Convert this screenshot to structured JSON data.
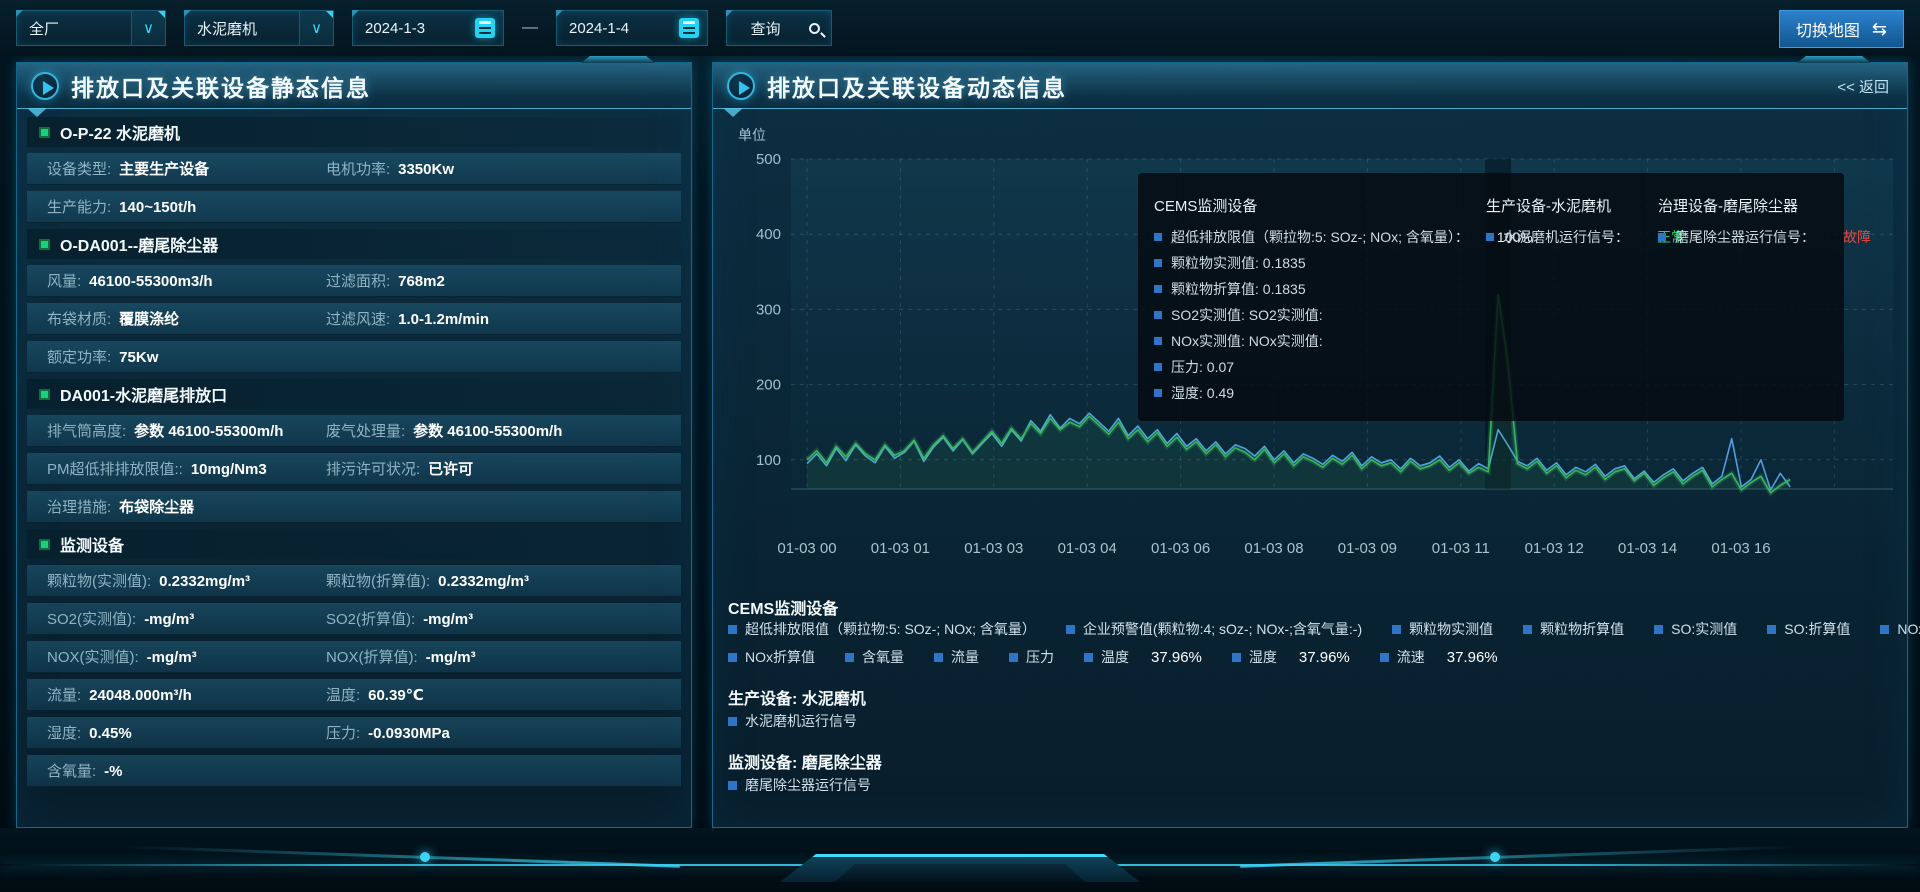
{
  "topbar": {
    "select_plant": {
      "value": "全厂"
    },
    "select_device": {
      "value": "水泥磨机"
    },
    "date_start": "2024-1-3",
    "date_separator": "—",
    "date_end": "2024-1-4",
    "query_label": "查询",
    "switch_map_label": "切换地图",
    "switch_icon": "⇆"
  },
  "left_panel": {
    "title": "排放口及关联设备静态信息",
    "rows": [
      {
        "type": "section",
        "label": "O-P-22 水泥磨机"
      },
      {
        "type": "data",
        "cols": [
          {
            "label": "设备类型:",
            "value": "主要生产设备"
          },
          {
            "label": "电机功率:",
            "value": "3350Kw"
          }
        ]
      },
      {
        "type": "data",
        "cols": [
          {
            "label": "生产能力:",
            "value": "140~150t/h"
          }
        ]
      },
      {
        "type": "section",
        "label": "O-DA001--磨尾除尘器"
      },
      {
        "type": "data",
        "cols": [
          {
            "label": "风量:",
            "value": "46100-55300m3/h"
          },
          {
            "label": "过滤面积:",
            "value": "768m2"
          }
        ]
      },
      {
        "type": "data",
        "cols": [
          {
            "label": "布袋材质:",
            "value": "覆膜涤纶"
          },
          {
            "label": "过滤风速:",
            "value": "1.0-1.2m/min"
          }
        ]
      },
      {
        "type": "data",
        "cols": [
          {
            "label": "额定功率:",
            "value": "75Kw"
          }
        ]
      },
      {
        "type": "section",
        "label": "DA001-水泥磨尾排放口"
      },
      {
        "type": "data",
        "cols": [
          {
            "label": "排气筒高度:",
            "value": "参数 46100-55300m/h"
          },
          {
            "label": "废气处理量:",
            "value": "参数 46100-55300m/h"
          }
        ]
      },
      {
        "type": "data",
        "cols": [
          {
            "label": "PM超低排排放限值::",
            "value": "10mg/Nm3"
          },
          {
            "label": "排污许可状况:",
            "value": "已许可"
          }
        ]
      },
      {
        "type": "data",
        "cols": [
          {
            "label": "治理措施:",
            "value": "布袋除尘器"
          }
        ]
      },
      {
        "type": "section",
        "label": "监测设备"
      },
      {
        "type": "data",
        "cols": [
          {
            "label": "颗粒物(实测值):",
            "value": "0.2332mg/m³"
          },
          {
            "label": "颗粒物(折算值):",
            "value": "0.2332mg/m³"
          }
        ]
      },
      {
        "type": "data",
        "cols": [
          {
            "label": "SO2(实测值):",
            "value": "-mg/m³"
          },
          {
            "label": "SO2(折算值):",
            "value": "-mg/m³"
          }
        ]
      },
      {
        "type": "data",
        "cols": [
          {
            "label": "NOX(实测值):",
            "value": "-mg/m³"
          },
          {
            "label": "NOX(折算值):",
            "value": "-mg/m³"
          }
        ]
      },
      {
        "type": "data",
        "cols": [
          {
            "label": "流量:",
            "value": "24048.000m³/h"
          },
          {
            "label": "温度:",
            "value": "60.39℃"
          }
        ]
      },
      {
        "type": "data",
        "cols": [
          {
            "label": "湿度:",
            "value": "0.45%"
          },
          {
            "label": "压力:",
            "value": "-0.0930MPa"
          }
        ]
      },
      {
        "type": "data",
        "cols": [
          {
            "label": "含氧量:",
            "value": "-%"
          }
        ]
      }
    ]
  },
  "right_panel": {
    "title": "排放口及关联设备动态信息",
    "back_label": "<< 返回",
    "unit_label": "单位",
    "tooltip": {
      "columns": [
        {
          "title": "CEMS监测设备",
          "items": [
            {
              "label": "超低排放限值（颗拉物:5: SOz-; NOx; 含氧量）：",
              "value": "100%",
              "value_color": "#e6eef4"
            },
            {
              "label": "颗粒物实测值: 0.1835"
            },
            {
              "label": "颗粒物折算值: 0.1835"
            },
            {
              "label": "SO2实测值: SO2实测值:"
            },
            {
              "label": "NOx实测值: NOx实测值:"
            },
            {
              "label": "压力: 0.07"
            },
            {
              "label": "湿度: 0.49"
            }
          ]
        },
        {
          "title": "生产设备-水泥磨机",
          "items": [
            {
              "label": "水泥磨机运行信号：",
              "value": "正常",
              "value_color": "#2ecc71"
            }
          ]
        },
        {
          "title": "治理设备-磨尾除尘器",
          "items": [
            {
              "label": "磨尾除尘器运行信号：",
              "value": "故障",
              "value_color": "#e8483b"
            }
          ]
        }
      ]
    },
    "legend": {
      "cems_title": "CEMS监测设备",
      "row1": [
        "超低排放限值（颗拉物:5: SOz-; NOx; 含氧量）",
        "企业预警值(颗粒物:4; sOz-; NOx-;含氧气量:-)",
        "颗粒物实测值",
        "颗粒物折算值",
        "SO:实测值",
        "SO:折算值",
        "NOx实测值"
      ],
      "row2": [
        {
          "label": "NOx折算值"
        },
        {
          "label": "含氧量"
        },
        {
          "label": "流量"
        },
        {
          "label": "压力"
        },
        {
          "label": "温度",
          "value": "37.96%"
        },
        {
          "label": "湿度",
          "value": "37.96%"
        },
        {
          "label": "流速",
          "value": "37.96%"
        }
      ],
      "prod_title": "生产设备: 水泥磨机",
      "prod_items": [
        "水泥磨机运行信号"
      ],
      "mon_title": "监测设备: 磨尾除尘器",
      "mon_items": [
        "磨尾除尘器运行信号"
      ]
    }
  },
  "chart_data": {
    "type": "line",
    "title": "",
    "ylabel": "单位",
    "ylim": [
      0,
      500
    ],
    "yticks": [
      100,
      200,
      300,
      400,
      500
    ],
    "grid": true,
    "legend_position": "bottom",
    "x_tick_labels": [
      "01-03 00",
      "01-03 01",
      "01-03 03",
      "01-03 04",
      "01-03 06",
      "01-03 08",
      "01-03 09",
      "01-03 11",
      "01-03 12",
      "01-03 14",
      "01-03 16"
    ],
    "hover_index": 71,
    "series": [
      {
        "name": "颗粒物实测值",
        "color": "#4f9fe0",
        "values": [
          95,
          108,
          92,
          115,
          99,
          120,
          105,
          96,
          118,
          102,
          110,
          125,
          98,
          117,
          130,
          112,
          127,
          108,
          122,
          135,
          118,
          140,
          125,
          152,
          138,
          160,
          142,
          155,
          148,
          162,
          150,
          138,
          155,
          132,
          145,
          128,
          140,
          122,
          135,
          118,
          128,
          112,
          124,
          108,
          120,
          115,
          105,
          118,
          100,
          112,
          96,
          108,
          102,
          94,
          106,
          98,
          110,
          92,
          104,
          96,
          100,
          88,
          102,
          92,
          96,
          105,
          90,
          100,
          85,
          95,
          88,
          140,
          120,
          98,
          92,
          102,
          86,
          96,
          80,
          90,
          84,
          94,
          78,
          88,
          92,
          75,
          85,
          70,
          80,
          88,
          72,
          82,
          90,
          68,
          78,
          128,
          64,
          74,
          100,
          60,
          82,
          64
        ]
      },
      {
        "name": "颗粒物折算值",
        "color": "#3cb45c",
        "values": [
          100,
          112,
          96,
          118,
          104,
          122,
          108,
          100,
          120,
          106,
          112,
          126,
          102,
          120,
          132,
          115,
          128,
          110,
          124,
          138,
          122,
          142,
          128,
          148,
          135,
          155,
          140,
          150,
          144,
          158,
          146,
          134,
          150,
          128,
          140,
          124,
          136,
          118,
          130,
          114,
          124,
          108,
          120,
          104,
          116,
          110,
          100,
          114,
          96,
          108,
          92,
          104,
          98,
          90,
          102,
          94,
          106,
          88,
          100,
          92,
          96,
          84,
          98,
          88,
          92,
          100,
          86,
          96,
          82,
          90,
          84,
          320,
          230,
          95,
          88,
          98,
          82,
          92,
          76,
          86,
          80,
          90,
          74,
          84,
          88,
          72,
          82,
          66,
          76,
          84,
          68,
          78,
          86,
          64,
          74,
          82,
          60,
          70,
          78,
          56,
          66,
          74
        ]
      }
    ]
  }
}
